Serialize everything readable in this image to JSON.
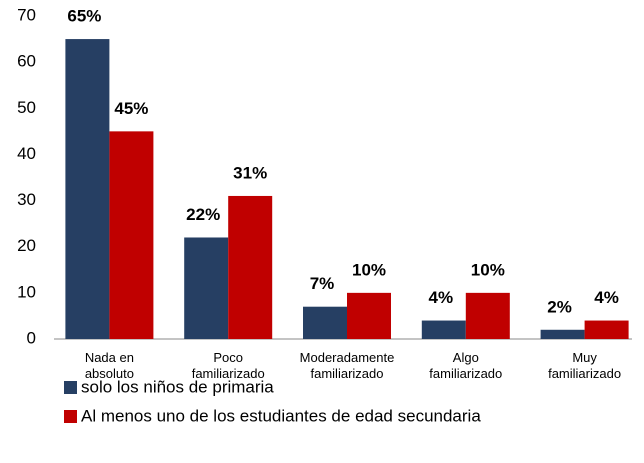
{
  "chart_data": {
    "type": "bar",
    "categories": [
      "Nada en absoluto",
      "Poco familiarizado",
      "Moderadamente familiarizado",
      "Algo familiarizado",
      "Muy familiarizado"
    ],
    "series": [
      {
        "name": "solo los niños de primaria",
        "color": "#263f63",
        "values": [
          65,
          22,
          7,
          4,
          2
        ],
        "value_labels": [
          "65%",
          "22%",
          "7%",
          "4%",
          "2%"
        ]
      },
      {
        "name": "Al menos uno de los estudiantes de edad secundaria",
        "color": "#c00000",
        "values": [
          45,
          31,
          10,
          10,
          4
        ],
        "value_labels": [
          "45%",
          "31%",
          "10%",
          "10%",
          "4%"
        ]
      }
    ],
    "ylim": [
      0,
      70
    ],
    "yticks": [
      0,
      10,
      20,
      30,
      40,
      50,
      60,
      70
    ],
    "grid": false,
    "legend": "bottom"
  }
}
